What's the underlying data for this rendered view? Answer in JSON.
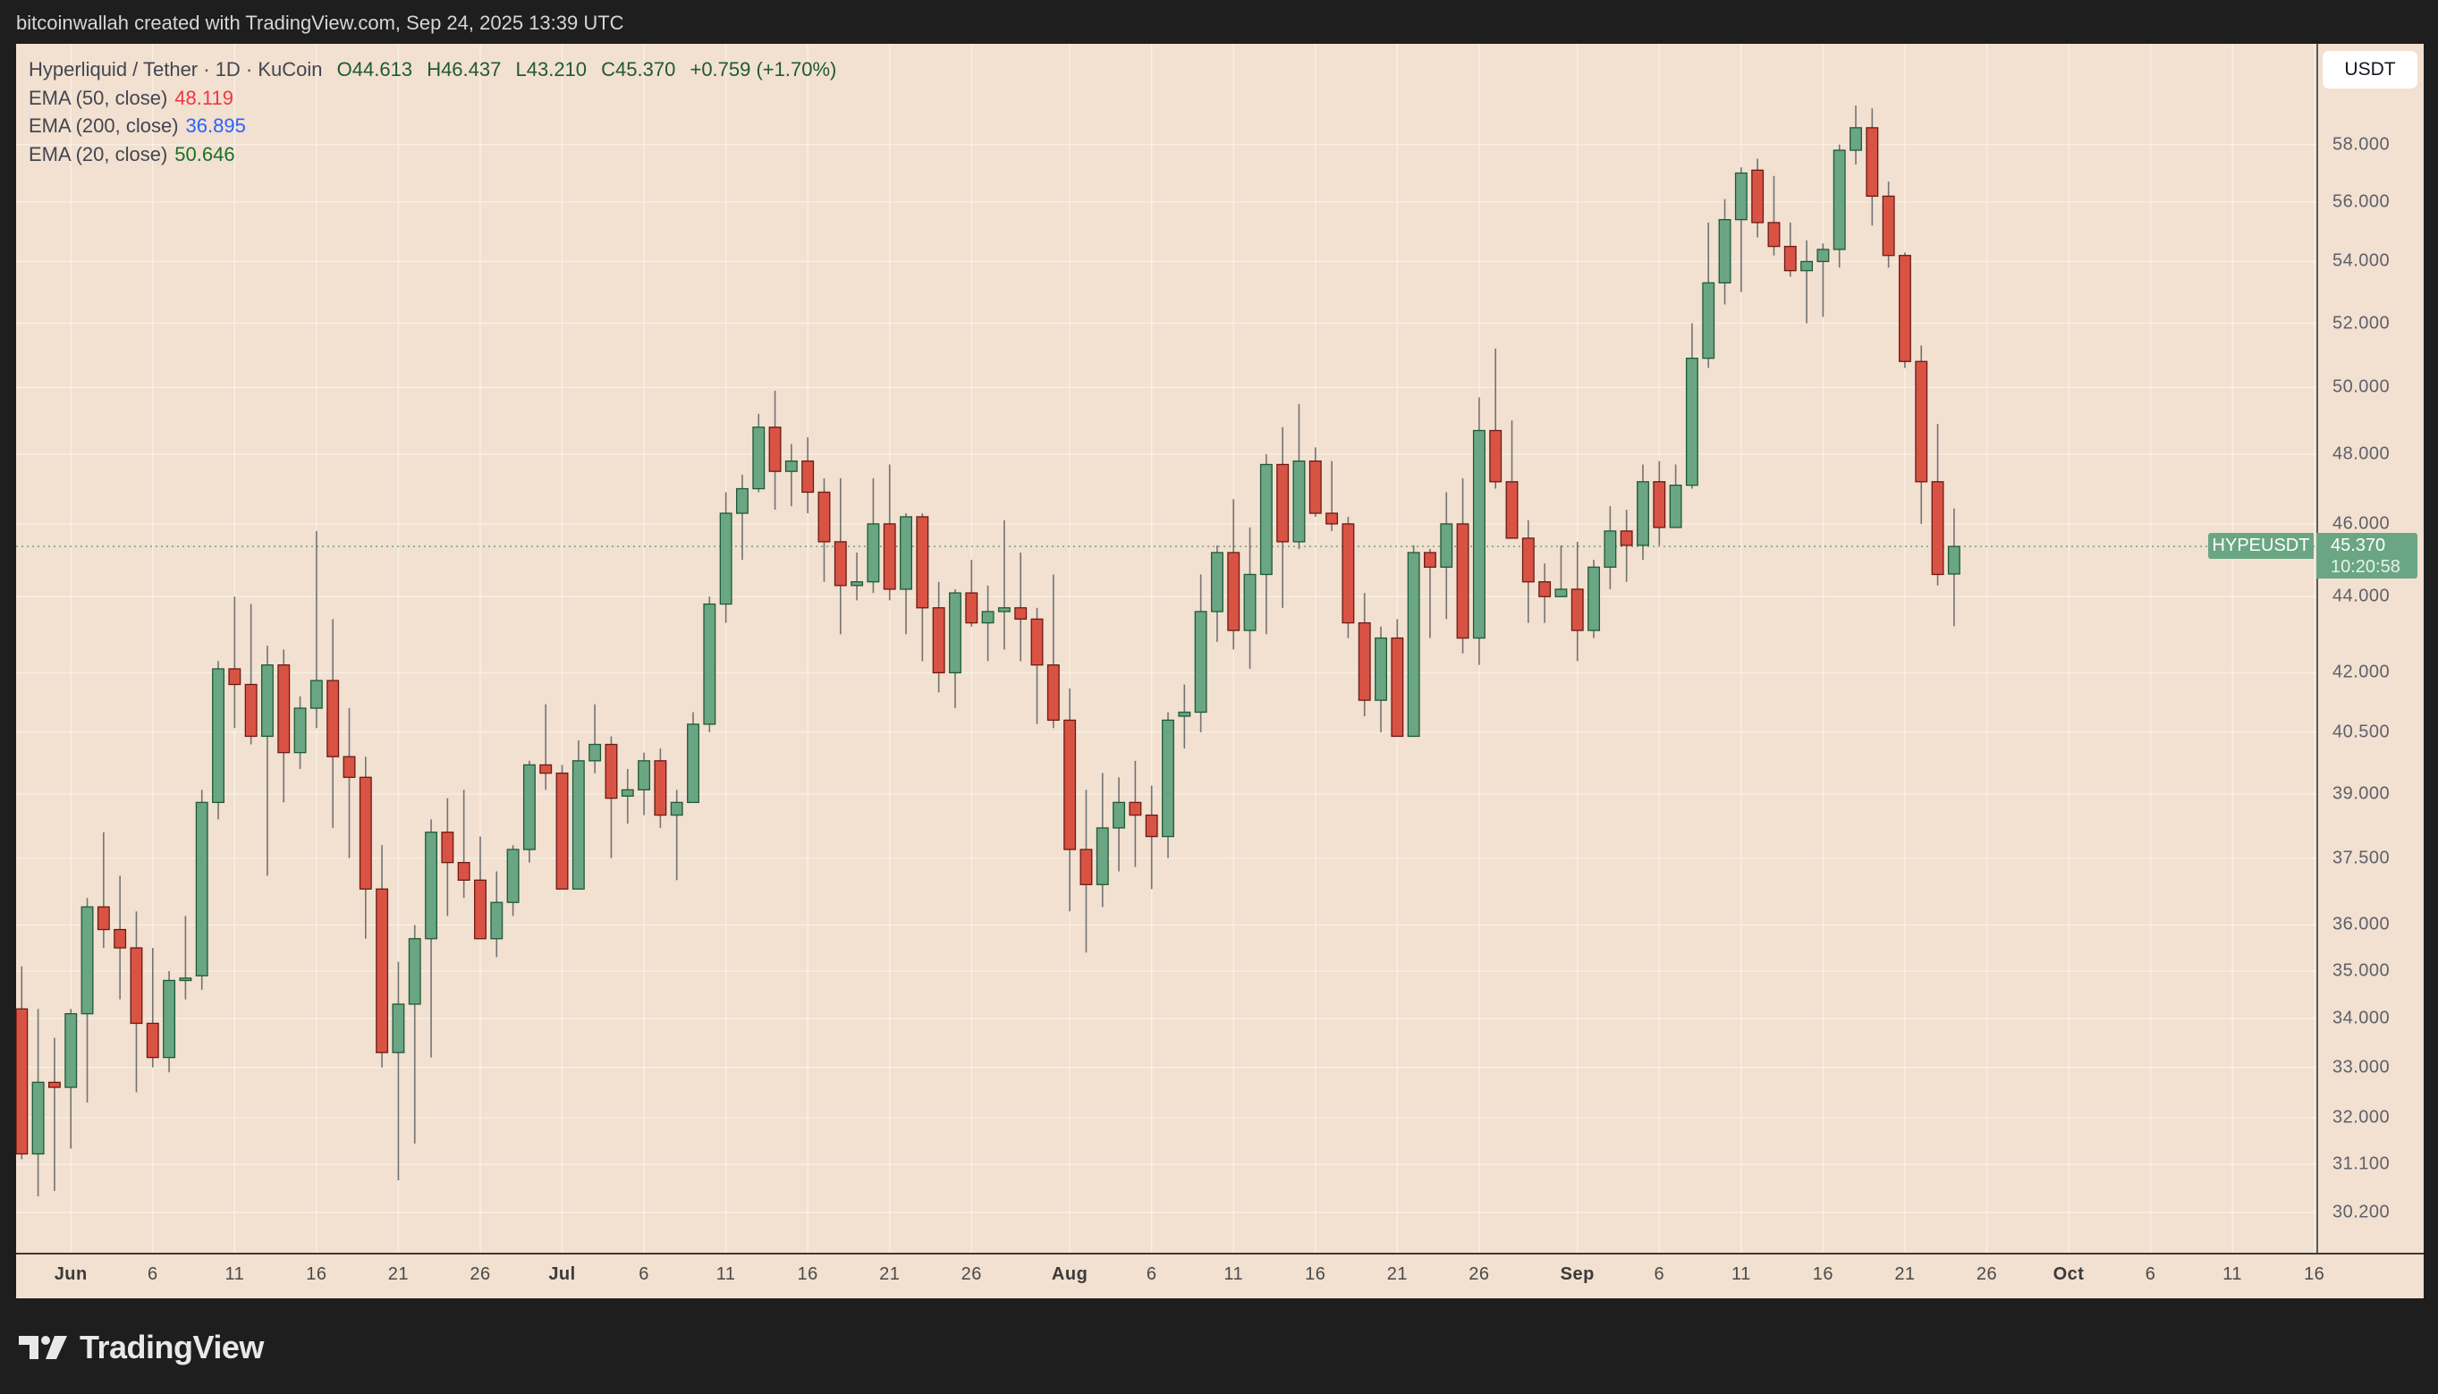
{
  "header": {
    "attribution": "bitcoinwallah created with TradingView.com, Sep 24, 2025 13:39 UTC"
  },
  "legend": {
    "symbol": "Hyperliquid / Tether · 1D · KuCoin",
    "open": "O44.613",
    "high": "H46.437",
    "low": "L43.210",
    "close": "C45.370",
    "change": "+0.759 (+1.70%)",
    "emas": [
      {
        "label": "EMA (50, close)",
        "value": "48.119",
        "color": "#f23645"
      },
      {
        "label": "EMA (200, close)",
        "value": "36.895",
        "color": "#2962ff"
      },
      {
        "label": "EMA (20, close)",
        "value": "50.646",
        "color": "#1b6e2a"
      }
    ]
  },
  "price_axis": {
    "currency_button": "USDT",
    "symbol_tag": "HYPEUSDT",
    "last_price": "45.370",
    "countdown": "10:20:58"
  },
  "brand": {
    "name": "TradingView"
  },
  "colors": {
    "up": "#6aa683",
    "up_border": "#1e5a38",
    "down": "#d95344",
    "down_border": "#6b1a14",
    "wick": "#737373",
    "background": "#f2e0d0"
  },
  "chart_data": {
    "type": "candlestick",
    "title": "Hyperliquid / Tether · 1D · KuCoin",
    "y_scale": "log",
    "ylim": [
      29.8,
      60.5
    ],
    "grid": true,
    "y_ticks": [
      "58.000",
      "56.000",
      "54.000",
      "52.000",
      "50.000",
      "48.000",
      "46.000",
      "44.000",
      "42.000",
      "40.500",
      "39.000",
      "37.500",
      "36.000",
      "35.000",
      "34.000",
      "33.000",
      "32.000",
      "31.100",
      "30.200"
    ],
    "x_ticks": [
      {
        "date": "2025-06-01",
        "label": "Jun",
        "month": true
      },
      {
        "date": "2025-06-06",
        "label": "6"
      },
      {
        "date": "2025-06-11",
        "label": "11"
      },
      {
        "date": "2025-06-16",
        "label": "16"
      },
      {
        "date": "2025-06-21",
        "label": "21"
      },
      {
        "date": "2025-06-26",
        "label": "26"
      },
      {
        "date": "2025-07-01",
        "label": "Jul",
        "month": true
      },
      {
        "date": "2025-07-06",
        "label": "6"
      },
      {
        "date": "2025-07-11",
        "label": "11"
      },
      {
        "date": "2025-07-16",
        "label": "16"
      },
      {
        "date": "2025-07-21",
        "label": "21"
      },
      {
        "date": "2025-07-26",
        "label": "26"
      },
      {
        "date": "2025-08-01",
        "label": "Aug",
        "month": true
      },
      {
        "date": "2025-08-06",
        "label": "6"
      },
      {
        "date": "2025-08-11",
        "label": "11"
      },
      {
        "date": "2025-08-16",
        "label": "16"
      },
      {
        "date": "2025-08-21",
        "label": "21"
      },
      {
        "date": "2025-08-26",
        "label": "26"
      },
      {
        "date": "2025-09-01",
        "label": "Sep",
        "month": true
      },
      {
        "date": "2025-09-06",
        "label": "6"
      },
      {
        "date": "2025-09-11",
        "label": "11"
      },
      {
        "date": "2025-09-16",
        "label": "16"
      },
      {
        "date": "2025-09-21",
        "label": "21"
      },
      {
        "date": "2025-09-26",
        "label": "26"
      },
      {
        "date": "2025-10-01",
        "label": "Oct",
        "month": true
      },
      {
        "date": "2025-10-06",
        "label": "6"
      },
      {
        "date": "2025-10-11",
        "label": "11"
      },
      {
        "date": "2025-10-16",
        "label": "16"
      }
    ],
    "last_price": 45.37,
    "candles_columns": [
      "date",
      "open",
      "high",
      "low",
      "close"
    ],
    "candles": [
      [
        "2025-05-29",
        34.2,
        35.1,
        31.2,
        31.3
      ],
      [
        "2025-05-30",
        31.3,
        34.2,
        30.5,
        32.7
      ],
      [
        "2025-05-31",
        32.7,
        33.6,
        30.6,
        32.6
      ],
      [
        "2025-06-01",
        32.6,
        34.2,
        31.4,
        34.1
      ],
      [
        "2025-06-02",
        34.1,
        36.6,
        32.3,
        36.4
      ],
      [
        "2025-06-03",
        36.4,
        38.1,
        35.5,
        35.9
      ],
      [
        "2025-06-04",
        35.9,
        37.1,
        34.4,
        35.5
      ],
      [
        "2025-06-05",
        35.5,
        36.3,
        32.5,
        33.9
      ],
      [
        "2025-06-06",
        33.9,
        35.5,
        33.0,
        33.2
      ],
      [
        "2025-06-07",
        33.2,
        35.0,
        32.9,
        34.8
      ],
      [
        "2025-06-08",
        34.8,
        36.2,
        34.4,
        34.85
      ],
      [
        "2025-06-09",
        34.9,
        39.1,
        34.6,
        38.8
      ],
      [
        "2025-06-10",
        38.8,
        42.3,
        38.4,
        42.1
      ],
      [
        "2025-06-11",
        42.1,
        44.0,
        40.6,
        41.7
      ],
      [
        "2025-06-12",
        41.7,
        43.8,
        40.2,
        40.4
      ],
      [
        "2025-06-13",
        40.4,
        42.7,
        37.1,
        42.2
      ],
      [
        "2025-06-14",
        42.2,
        42.6,
        38.8,
        40.0
      ],
      [
        "2025-06-15",
        40.0,
        41.4,
        39.6,
        41.1
      ],
      [
        "2025-06-16",
        41.1,
        45.8,
        40.6,
        41.8
      ],
      [
        "2025-06-17",
        41.8,
        43.4,
        38.2,
        39.9
      ],
      [
        "2025-06-18",
        39.9,
        41.1,
        37.5,
        39.4
      ],
      [
        "2025-06-19",
        39.4,
        39.9,
        35.7,
        36.8
      ],
      [
        "2025-06-20",
        36.8,
        37.8,
        33.0,
        33.3
      ],
      [
        "2025-06-21",
        33.3,
        35.2,
        30.8,
        34.3
      ],
      [
        "2025-06-22",
        34.3,
        36.0,
        31.5,
        35.7
      ],
      [
        "2025-06-23",
        35.7,
        38.4,
        33.2,
        38.1
      ],
      [
        "2025-06-24",
        38.1,
        38.9,
        36.2,
        37.4
      ],
      [
        "2025-06-25",
        37.4,
        39.1,
        36.6,
        37.0
      ],
      [
        "2025-06-26",
        37.0,
        38.0,
        35.7,
        35.7
      ],
      [
        "2025-06-27",
        35.7,
        37.2,
        35.3,
        36.5
      ],
      [
        "2025-06-28",
        36.5,
        37.8,
        36.2,
        37.7
      ],
      [
        "2025-06-29",
        37.7,
        39.8,
        37.4,
        39.7
      ],
      [
        "2025-06-30",
        39.7,
        41.2,
        39.1,
        39.5
      ],
      [
        "2025-07-01",
        39.5,
        39.7,
        36.8,
        36.8
      ],
      [
        "2025-07-02",
        36.8,
        40.3,
        36.8,
        39.8
      ],
      [
        "2025-07-03",
        39.8,
        41.2,
        39.5,
        40.2
      ],
      [
        "2025-07-04",
        40.2,
        40.4,
        37.5,
        38.9
      ],
      [
        "2025-07-05",
        38.95,
        39.6,
        38.3,
        39.1
      ],
      [
        "2025-07-06",
        39.1,
        40.0,
        38.5,
        39.8
      ],
      [
        "2025-07-07",
        39.8,
        40.1,
        38.2,
        38.5
      ],
      [
        "2025-07-08",
        38.5,
        39.1,
        37.0,
        38.8
      ],
      [
        "2025-07-09",
        38.8,
        41.0,
        38.8,
        40.7
      ],
      [
        "2025-07-10",
        40.7,
        44.0,
        40.5,
        43.8
      ],
      [
        "2025-07-11",
        43.8,
        46.9,
        43.3,
        46.3
      ],
      [
        "2025-07-12",
        46.3,
        47.4,
        45.0,
        47.0
      ],
      [
        "2025-07-13",
        47.0,
        49.2,
        46.9,
        48.8
      ],
      [
        "2025-07-14",
        48.8,
        49.9,
        46.4,
        47.5
      ],
      [
        "2025-07-15",
        47.5,
        48.3,
        46.5,
        47.8
      ],
      [
        "2025-07-16",
        47.8,
        48.5,
        46.3,
        46.9
      ],
      [
        "2025-07-17",
        46.9,
        47.3,
        44.4,
        45.5
      ],
      [
        "2025-07-18",
        45.5,
        47.3,
        43.0,
        44.3
      ],
      [
        "2025-07-19",
        44.3,
        45.2,
        43.9,
        44.4
      ],
      [
        "2025-07-20",
        44.4,
        47.3,
        44.1,
        46.0
      ],
      [
        "2025-07-21",
        46.0,
        47.7,
        43.9,
        44.2
      ],
      [
        "2025-07-22",
        44.2,
        46.3,
        43.0,
        46.2
      ],
      [
        "2025-07-23",
        46.2,
        46.3,
        42.3,
        43.7
      ],
      [
        "2025-07-24",
        43.7,
        44.4,
        41.5,
        42.0
      ],
      [
        "2025-07-25",
        42.0,
        44.2,
        41.1,
        44.1
      ],
      [
        "2025-07-26",
        44.1,
        45.0,
        43.2,
        43.3
      ],
      [
        "2025-07-27",
        43.3,
        44.3,
        42.3,
        43.6
      ],
      [
        "2025-07-28",
        43.6,
        46.1,
        42.6,
        43.7
      ],
      [
        "2025-07-29",
        43.7,
        45.2,
        42.3,
        43.4
      ],
      [
        "2025-07-30",
        43.4,
        43.7,
        40.7,
        42.2
      ],
      [
        "2025-07-31",
        42.2,
        44.6,
        40.6,
        40.8
      ],
      [
        "2025-08-01",
        40.8,
        41.6,
        36.3,
        37.7
      ],
      [
        "2025-08-02",
        37.7,
        39.1,
        35.4,
        36.9
      ],
      [
        "2025-08-03",
        36.9,
        39.5,
        36.4,
        38.2
      ],
      [
        "2025-08-04",
        38.2,
        39.4,
        37.2,
        38.8
      ],
      [
        "2025-08-05",
        38.8,
        39.8,
        37.3,
        38.5
      ],
      [
        "2025-08-06",
        38.5,
        39.2,
        36.8,
        38.0
      ],
      [
        "2025-08-07",
        38.0,
        41.0,
        37.5,
        40.8
      ],
      [
        "2025-08-08",
        40.9,
        41.7,
        40.1,
        41.0
      ],
      [
        "2025-08-09",
        41.0,
        44.6,
        40.5,
        43.6
      ],
      [
        "2025-08-10",
        43.6,
        45.4,
        42.8,
        45.2
      ],
      [
        "2025-08-11",
        45.2,
        46.7,
        42.6,
        43.1
      ],
      [
        "2025-08-12",
        43.1,
        45.9,
        42.1,
        44.6
      ],
      [
        "2025-08-13",
        44.6,
        48.0,
        43.0,
        47.7
      ],
      [
        "2025-08-14",
        47.7,
        48.8,
        43.7,
        45.5
      ],
      [
        "2025-08-15",
        45.5,
        49.5,
        45.3,
        47.8
      ],
      [
        "2025-08-16",
        47.8,
        48.2,
        46.2,
        46.3
      ],
      [
        "2025-08-17",
        46.3,
        47.8,
        45.8,
        46.0
      ],
      [
        "2025-08-18",
        46.0,
        46.2,
        42.9,
        43.3
      ],
      [
        "2025-08-19",
        43.3,
        44.1,
        40.9,
        41.3
      ],
      [
        "2025-08-20",
        41.3,
        43.2,
        40.5,
        42.9
      ],
      [
        "2025-08-21",
        42.9,
        43.4,
        40.4,
        40.4
      ],
      [
        "2025-08-22",
        40.4,
        45.4,
        40.4,
        45.2
      ],
      [
        "2025-08-23",
        45.2,
        45.3,
        42.9,
        44.8
      ],
      [
        "2025-08-24",
        44.8,
        46.9,
        43.4,
        46.0
      ],
      [
        "2025-08-25",
        46.0,
        47.3,
        42.5,
        42.9
      ],
      [
        "2025-08-26",
        42.9,
        49.7,
        42.2,
        48.7
      ],
      [
        "2025-08-27",
        48.7,
        51.2,
        47.0,
        47.2
      ],
      [
        "2025-08-28",
        47.2,
        49.0,
        45.6,
        45.6
      ],
      [
        "2025-08-29",
        45.6,
        46.1,
        43.3,
        44.4
      ],
      [
        "2025-08-30",
        44.4,
        44.9,
        43.3,
        44.0
      ],
      [
        "2025-08-31",
        44.0,
        45.4,
        44.0,
        44.2
      ],
      [
        "2025-09-01",
        44.2,
        45.5,
        42.3,
        43.1
      ],
      [
        "2025-09-02",
        43.1,
        45.0,
        42.9,
        44.8
      ],
      [
        "2025-09-03",
        44.8,
        46.5,
        44.2,
        45.8
      ],
      [
        "2025-09-04",
        45.8,
        46.4,
        44.4,
        45.4
      ],
      [
        "2025-09-05",
        45.4,
        47.7,
        45.0,
        47.2
      ],
      [
        "2025-09-06",
        47.2,
        47.8,
        45.4,
        45.9
      ],
      [
        "2025-09-07",
        45.9,
        47.7,
        45.9,
        47.1
      ],
      [
        "2025-09-08",
        47.1,
        52.0,
        47.0,
        50.9
      ],
      [
        "2025-09-09",
        50.9,
        55.3,
        50.6,
        53.3
      ],
      [
        "2025-09-10",
        53.3,
        56.1,
        52.6,
        55.4
      ],
      [
        "2025-09-11",
        55.4,
        57.2,
        53.0,
        57.0
      ],
      [
        "2025-09-12",
        57.1,
        57.5,
        54.8,
        55.3
      ],
      [
        "2025-09-13",
        55.3,
        56.9,
        54.2,
        54.5
      ],
      [
        "2025-09-14",
        54.5,
        55.3,
        53.5,
        53.7
      ],
      [
        "2025-09-15",
        53.7,
        54.7,
        52.0,
        54.0
      ],
      [
        "2025-09-16",
        54.0,
        54.6,
        52.2,
        54.4
      ],
      [
        "2025-09-17",
        54.4,
        58.0,
        53.8,
        57.8
      ],
      [
        "2025-09-18",
        57.8,
        59.4,
        57.3,
        58.6
      ],
      [
        "2025-09-19",
        58.6,
        59.3,
        55.2,
        56.2
      ],
      [
        "2025-09-20",
        56.2,
        56.7,
        53.8,
        54.2
      ],
      [
        "2025-09-21",
        54.2,
        54.3,
        50.6,
        50.8
      ],
      [
        "2025-09-22",
        50.8,
        51.3,
        46.0,
        47.2
      ],
      [
        "2025-09-23",
        47.2,
        48.9,
        44.3,
        44.6
      ],
      [
        "2025-09-24",
        44.613,
        46.437,
        43.21,
        45.37
      ]
    ]
  }
}
